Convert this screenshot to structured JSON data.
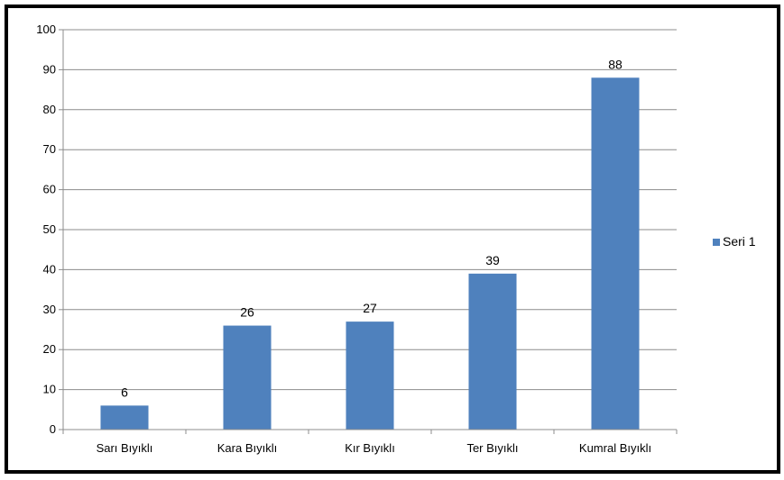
{
  "chart_data": {
    "type": "bar",
    "categories": [
      "Sarı Bıyıklı",
      "Kara Bıyıklı",
      "Kır Bıyıklı",
      "Ter Bıyıklı",
      "Kumral Bıyıklı"
    ],
    "series": [
      {
        "name": "Seri 1",
        "values": [
          6,
          26,
          27,
          39,
          88
        ],
        "color": "#4f81bd"
      }
    ],
    "ylim": [
      0,
      100
    ],
    "yticks": [
      0,
      10,
      20,
      30,
      40,
      50,
      60,
      70,
      80,
      90,
      100
    ],
    "data_labels": [
      "6",
      "26",
      "27",
      "39",
      "88"
    ],
    "grid": true,
    "legend_position": "right",
    "title": "",
    "xlabel": "",
    "ylabel": ""
  }
}
